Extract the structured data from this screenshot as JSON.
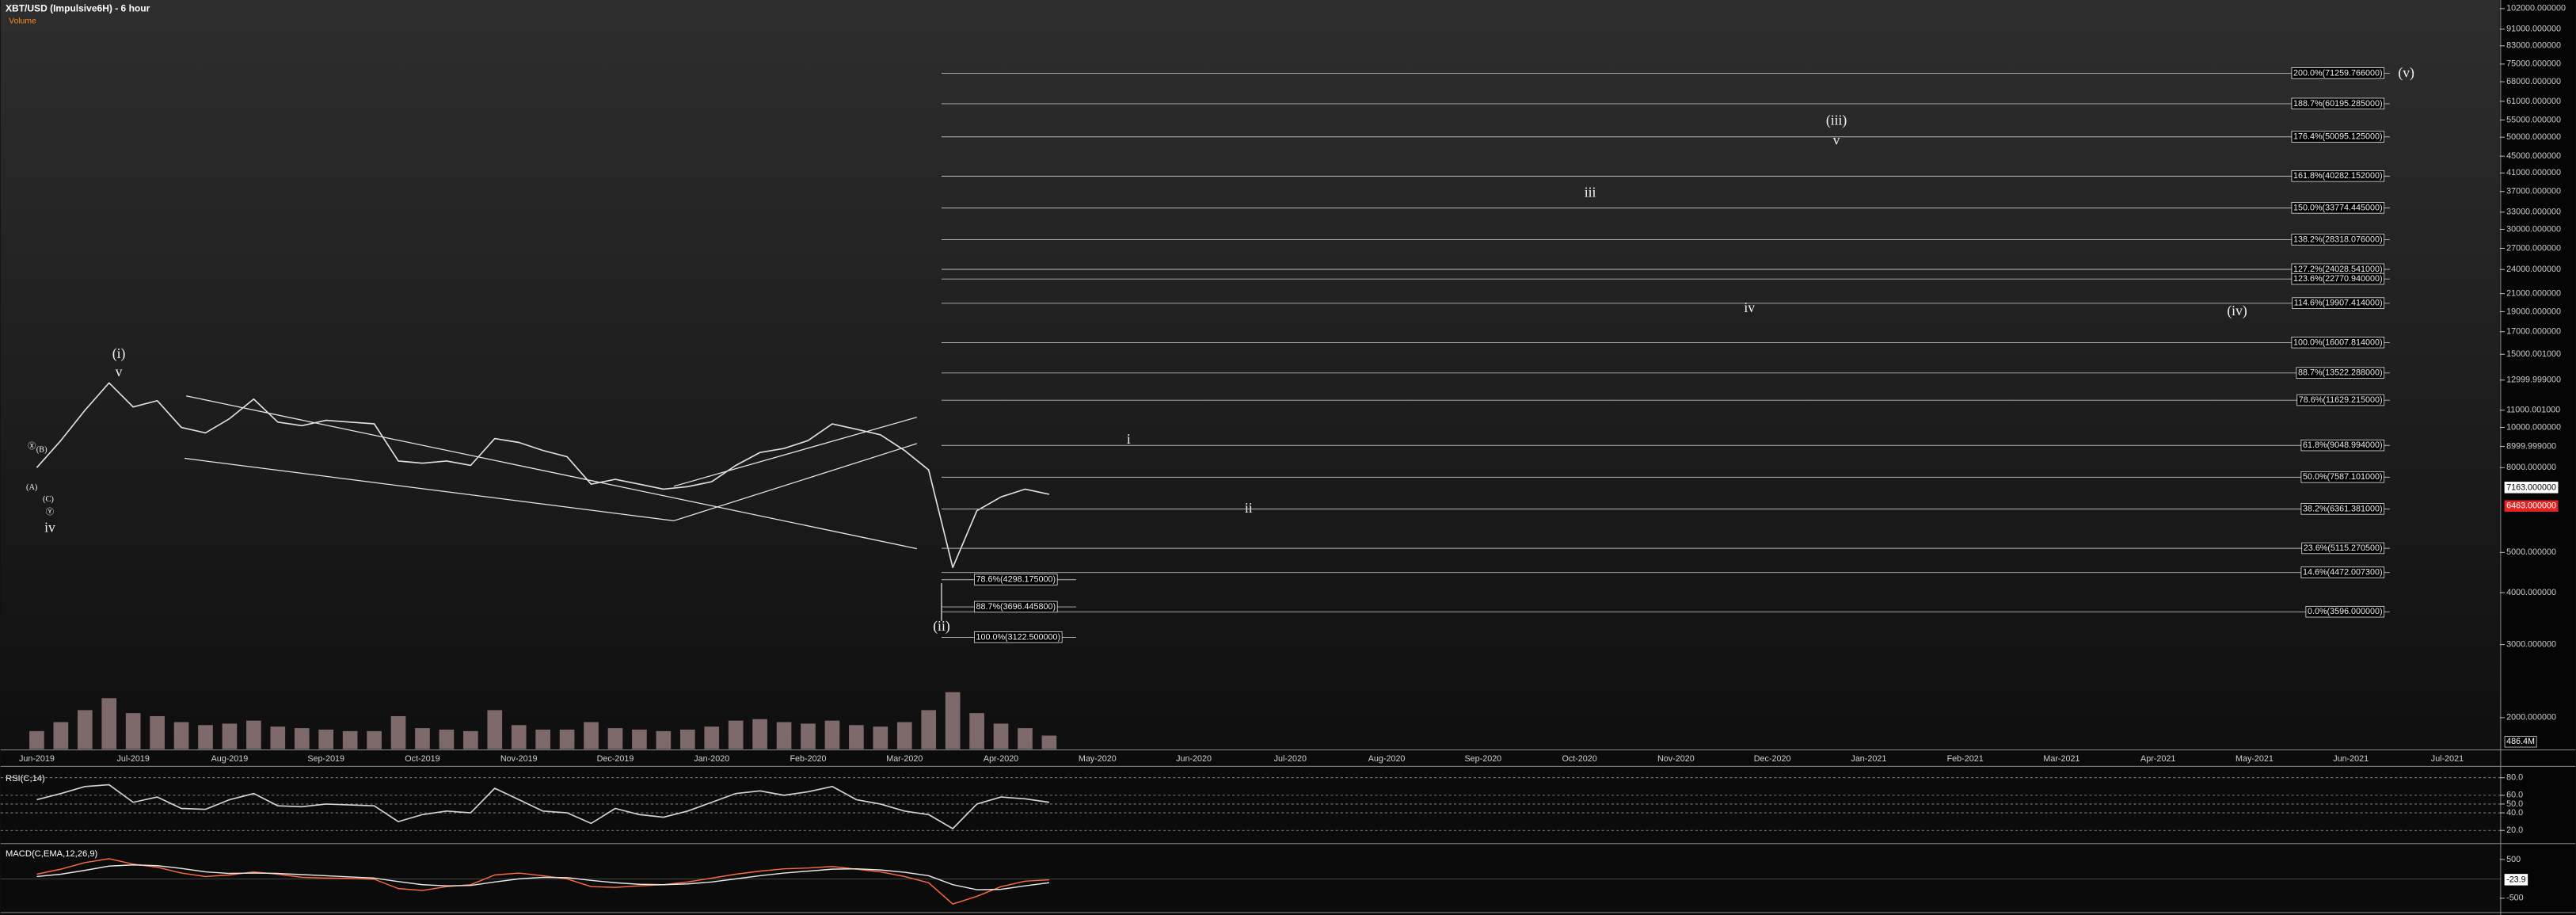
{
  "chart_data": [
    {
      "type": "line",
      "title": "XBT/USD (Impulsive6H) - 6 hour",
      "subtitle": "Volume",
      "categories": [
        "Jun-2019",
        null,
        null,
        null,
        "Jul-2019",
        null,
        null,
        null,
        "Aug-2019",
        null,
        null,
        null,
        "Sep-2019",
        null,
        null,
        null,
        "Oct-2019",
        null,
        null,
        null,
        "Nov-2019",
        null,
        null,
        null,
        "Dec-2019",
        null,
        null,
        null,
        "Jan-2020",
        null,
        null,
        null,
        "Feb-2020",
        null,
        null,
        null,
        "Mar-2020",
        null,
        null,
        null,
        "Apr-2020",
        null,
        null,
        null,
        "May-2020",
        null,
        null,
        null,
        "Jun-2020",
        null,
        null,
        null,
        "Jul-2020",
        null,
        null,
        null,
        "Aug-2020",
        null,
        null,
        null,
        "Sep-2020",
        null,
        null,
        null,
        "Oct-2020",
        null,
        null,
        null,
        "Nov-2020",
        null,
        null,
        null,
        "Dec-2020",
        null,
        null,
        null,
        "Jan-2021",
        null,
        null,
        null,
        "Feb-2021",
        null,
        null,
        null,
        "Mar-2021",
        null,
        null,
        null,
        "Apr-2021",
        null,
        null,
        null,
        "May-2021",
        null,
        null,
        null,
        "Jun-2021",
        null,
        null,
        null,
        "Jul-2021"
      ],
      "values": [
        8000,
        9300,
        11000,
        12800,
        11200,
        11600,
        10000,
        9700,
        10500,
        11700,
        10300,
        10100,
        10400,
        10300,
        10200,
        8300,
        8200,
        8300,
        8100,
        9400,
        9200,
        8800,
        8500,
        7300,
        7500,
        7300,
        7100,
        7200,
        7400,
        8100,
        8700,
        8900,
        9300,
        10200,
        9900,
        9600,
        8800,
        7900,
        4600,
        6300,
        6800,
        7100,
        6900,
        null,
        null,
        null,
        null,
        null,
        null,
        null,
        null,
        null,
        null,
        null,
        null,
        null,
        null,
        null,
        null,
        null,
        null,
        null,
        null,
        null,
        null,
        null,
        null,
        null,
        null,
        null,
        null,
        null,
        null,
        null,
        null,
        null,
        null,
        null,
        null,
        null,
        null,
        null,
        null,
        null,
        null,
        null,
        null,
        null,
        null,
        null,
        null,
        null,
        null,
        null,
        null,
        null,
        null,
        null,
        null,
        null,
        null
      ],
      "color": "#e6dede",
      "log_scale": true,
      "ylim": [
        1680,
        107000
      ],
      "yticks": [
        {
          "value": 102000,
          "label": "102000.000000"
        },
        {
          "value": 91000,
          "label": "91000.000000"
        },
        {
          "value": 83000,
          "label": "83000.000000"
        },
        {
          "value": 75000,
          "label": "75000.000000"
        },
        {
          "value": 68000,
          "label": "68000.000000"
        },
        {
          "value": 61000,
          "label": "61000.000000"
        },
        {
          "value": 55000,
          "label": "55000.000000"
        },
        {
          "value": 50000,
          "label": "50000.000000"
        },
        {
          "value": 45000,
          "label": "45000.000000"
        },
        {
          "value": 41000,
          "label": "41000.000000"
        },
        {
          "value": 37000,
          "label": "37000.000000"
        },
        {
          "value": 33000,
          "label": "33000.000000"
        },
        {
          "value": 30000,
          "label": "30000.000000"
        },
        {
          "value": 27000,
          "label": "27000.000000"
        },
        {
          "value": 24000,
          "label": "24000.000000"
        },
        {
          "value": 21000,
          "label": "21000.000000"
        },
        {
          "value": 19000,
          "label": "19000.000000"
        },
        {
          "value": 17000,
          "label": "17000.000000"
        },
        {
          "value": 15000.001,
          "label": "15000.001000"
        },
        {
          "value": 12999.999,
          "label": "12999.999000"
        },
        {
          "value": 11000.001,
          "label": "11000.001000"
        },
        {
          "value": 10000,
          "label": "10000.000000"
        },
        {
          "value": 8999.999,
          "label": "8999.999000"
        },
        {
          "value": 8000,
          "label": "8000.000000"
        },
        {
          "value": 5000,
          "label": "5000.000000"
        },
        {
          "value": 4000,
          "label": "4000.000000"
        },
        {
          "value": 3000,
          "label": "3000.000000"
        },
        {
          "value": 2000,
          "label": "2000.000000"
        }
      ],
      "volume": {
        "color": "#d9b4b4",
        "axis": "y2",
        "values": [
          1200,
          1800,
          2600,
          3400,
          2400,
          2200,
          1800,
          1600,
          1700,
          1900,
          1500,
          1400,
          1300,
          1200,
          1200,
          2200,
          1400,
          1300,
          1200,
          2600,
          1600,
          1300,
          1300,
          1800,
          1400,
          1300,
          1200,
          1300,
          1500,
          1900,
          2000,
          1800,
          1700,
          1900,
          1600,
          1500,
          1800,
          2600,
          3800,
          2400,
          1700,
          1400,
          900,
          null,
          null,
          null,
          null,
          null,
          null,
          null,
          null,
          null,
          null,
          null,
          null,
          null,
          null,
          null,
          null,
          null,
          null,
          null,
          null,
          null,
          null,
          null,
          null,
          null,
          null,
          null,
          null,
          null,
          null,
          null,
          null,
          null,
          null,
          null,
          null,
          null,
          null,
          null,
          null,
          null,
          null,
          null,
          null,
          null,
          null,
          null,
          null,
          null,
          null,
          null,
          null,
          null,
          null,
          null,
          null,
          null,
          null
        ]
      },
      "y2lim": [
        0,
        50000
      ],
      "volume_label": {
        "value": 486.4,
        "label": "486.4M"
      },
      "price_labels": [
        {
          "value": 7163,
          "label": "7163.000000",
          "color": "#ffffff"
        },
        {
          "value": 6463,
          "label": "6463.000000",
          "color": "#e02424"
        }
      ],
      "fib_levels": [
        {
          "value": 71259.766,
          "label": "200.0%(71259.766000)"
        },
        {
          "value": 60195.285,
          "label": "188.7%(60195.285000)"
        },
        {
          "value": 50095.125,
          "label": "176.4%(50095.125000)"
        },
        {
          "value": 40282.152,
          "label": "161.8%(40282.152000)"
        },
        {
          "value": 33774.445,
          "label": "150.0%(33774.445000)"
        },
        {
          "value": 28318.076,
          "label": "138.2%(28318.076000)"
        },
        {
          "value": 24028.541,
          "label": "127.2%(24028.541000)"
        },
        {
          "value": 22770.94,
          "label": "123.6%(22770.940000)"
        },
        {
          "value": 19907.414,
          "label": "114.6%(19907.414000)"
        },
        {
          "value": 16007.814,
          "label": "100.0%(16007.814000)"
        },
        {
          "value": 13522.288,
          "label": "88.7%(13522.288000)"
        },
        {
          "value": 11629.215,
          "label": "78.6%(11629.215000)"
        },
        {
          "value": 9048.994,
          "label": "61.8%(9048.994000)"
        },
        {
          "value": 7587.101,
          "label": "50.0%(7587.101000)"
        },
        {
          "value": 6361.381,
          "label": "38.2%(6361.381000)"
        },
        {
          "value": 5115.2705,
          "label": "23.6%(5115.270500)"
        },
        {
          "value": 4472.0073,
          "label": "14.6%(4472.007300)"
        },
        {
          "value": 3596,
          "label": "0.0%(3596.000000)"
        }
      ],
      "fib_levels_low": [
        {
          "value": 4298.175,
          "label": "78.6%(4298.175000)"
        },
        {
          "value": 3696.4458,
          "label": "88.7%(3696.445800)"
        },
        {
          "value": 3122.5,
          "label": "100.0%(3122.500000)"
        }
      ],
      "annotations": [
        "(i)",
        "v",
        "Ⓧ",
        "(B)",
        "(A)",
        "(C)",
        "Ⓨ",
        "iv",
        "(ii)",
        "i",
        "ii",
        "iii",
        "(iii)",
        "v",
        "iv",
        "(iv)",
        "(v)"
      ]
    },
    {
      "type": "line",
      "title": "RSI(C,14)",
      "color": "#d4d4d4",
      "ylim": [
        6,
        92
      ],
      "grid": true,
      "yticks": [
        {
          "value": 80,
          "label": "80.0"
        },
        {
          "value": 60,
          "label": "60.0"
        },
        {
          "value": 50,
          "label": "50.0"
        },
        {
          "value": 40,
          "label": "40.0"
        },
        {
          "value": 20,
          "label": "20.0"
        }
      ],
      "values": [
        55,
        62,
        70,
        72,
        52,
        58,
        45,
        44,
        55,
        62,
        48,
        47,
        50,
        49,
        48,
        30,
        38,
        42,
        40,
        68,
        55,
        42,
        40,
        28,
        45,
        38,
        35,
        42,
        52,
        62,
        65,
        60,
        64,
        70,
        55,
        50,
        42,
        38,
        22,
        50,
        58,
        56,
        52
      ]
    },
    {
      "type": "line",
      "title": "MACD(C,EMA,12,26,9)",
      "ylim": [
        -890,
        890
      ],
      "yticks": [
        500,
        -500
      ],
      "current": {
        "value": -23.9,
        "label": "-23.9"
      },
      "series": [
        {
          "color": "#ff6a3d",
          "values": [
            120,
            250,
            420,
            520,
            380,
            300,
            150,
            60,
            100,
            180,
            120,
            40,
            20,
            10,
            -10,
            -250,
            -300,
            -200,
            -150,
            100,
            150,
            80,
            0,
            -200,
            -220,
            -180,
            -150,
            -80,
            20,
            120,
            200,
            260,
            280,
            320,
            250,
            180,
            60,
            -100,
            -650,
            -450,
            -200,
            -60,
            -24
          ]
        },
        {
          "color": "#e8e8e8",
          "values": [
            60,
            120,
            220,
            330,
            360,
            340,
            270,
            180,
            140,
            150,
            140,
            110,
            80,
            50,
            20,
            -70,
            -150,
            -180,
            -170,
            -80,
            0,
            40,
            30,
            -40,
            -100,
            -140,
            -150,
            -130,
            -80,
            0,
            80,
            150,
            200,
            250,
            260,
            230,
            170,
            80,
            -150,
            -280,
            -270,
            -180,
            -100
          ]
        }
      ]
    }
  ]
}
